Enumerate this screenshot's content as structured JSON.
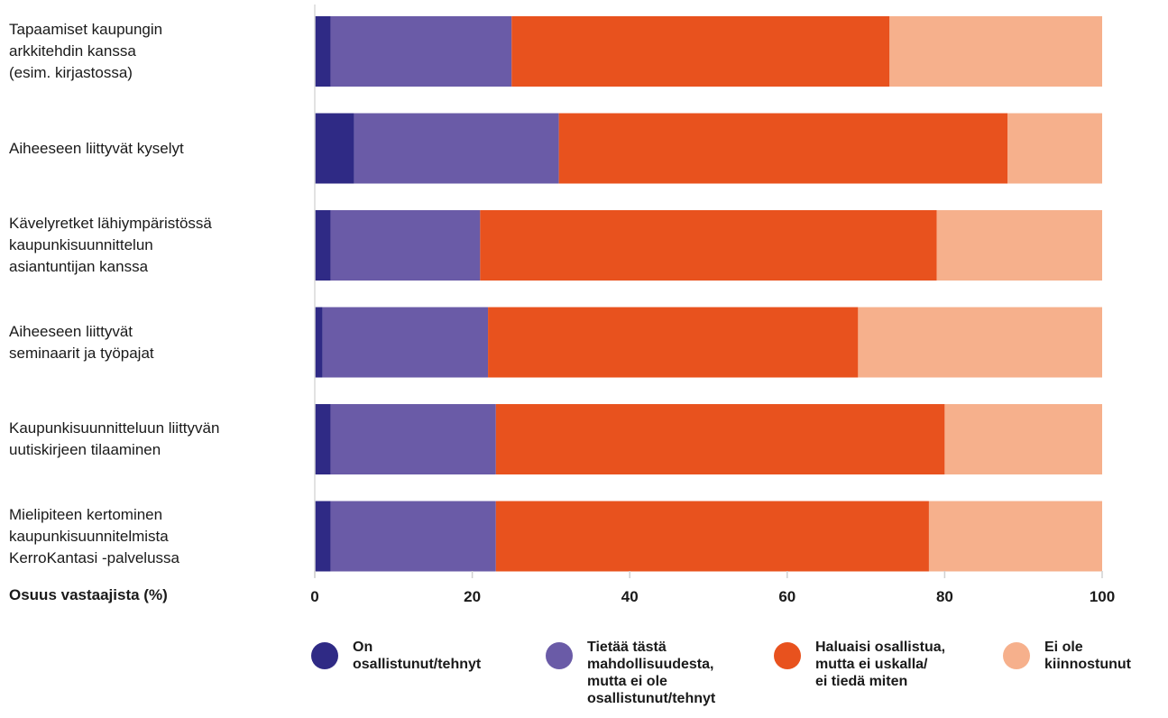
{
  "chart_data": {
    "type": "bar",
    "orientation": "horizontal",
    "stacked": true,
    "categories": [
      "Tapaamiset kaupungin\narkkitehdin kanssa\n(esim. kirjastossa)",
      "Aiheeseen liittyvät kyselyt",
      "Kävelyretket lähiympäristössä\nkaupunkisuunnittelun\nasiantuntijan kanssa",
      "Aiheeseen liittyvät\nseminaarit ja työpajat",
      "Kaupunkisuunnitteluun liittyvän\nuutiskirjeen tilaaminen",
      "Mielipiteen kertominen\nkaupunkisuunnitelmista\nKerroKantasi -palvelussa"
    ],
    "series": [
      {
        "name": "On\nosallistunut/tehnyt",
        "color": "#2f2a85",
        "values": [
          2,
          5,
          2,
          1,
          2,
          2
        ]
      },
      {
        "name": "Tietää tästä\nmahdollisuudesta,\nmutta ei ole\nosallistunut/tehnyt",
        "color": "#6a5ba7",
        "values": [
          23,
          26,
          19,
          21,
          21,
          21
        ]
      },
      {
        "name": "Haluaisi osallistua,\nmutta ei uskalla/\nei tiedä miten",
        "color": "#e8521e",
        "values": [
          48,
          57,
          58,
          47,
          57,
          55
        ]
      },
      {
        "name": "Ei ole\nkiinnostunut",
        "color": "#f6b08c",
        "values": [
          27,
          12,
          21,
          31,
          20,
          22
        ]
      }
    ],
    "xlabel": "Osuus vastaajista (%)",
    "xlim": [
      0,
      100
    ],
    "xticks": [
      0,
      20,
      40,
      60,
      80,
      100
    ],
    "grid": false,
    "legend": "bottom"
  }
}
